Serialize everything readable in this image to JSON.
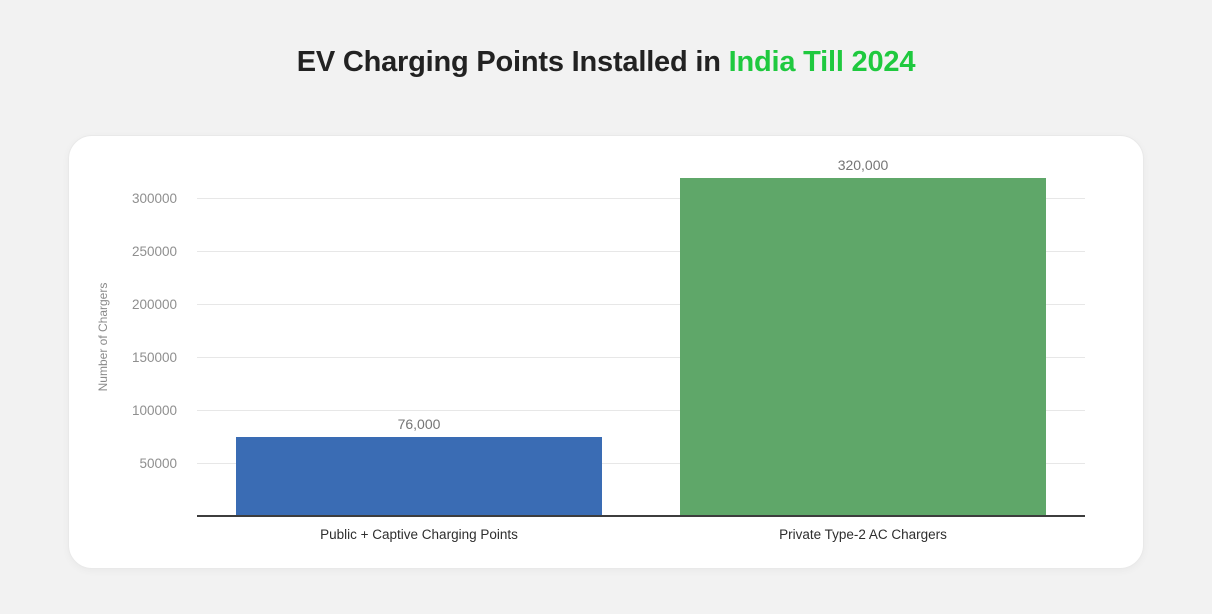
{
  "page": {
    "background": "#f2f2f2",
    "card_background": "#ffffff"
  },
  "header": {
    "title_prefix": "EV Charging Points Installed in ",
    "title_highlight": "India Till 2024",
    "title_color": "#222222",
    "highlight_color": "#1fc93f"
  },
  "chart_data": {
    "type": "bar",
    "title": "EV Charging Points Installed in India Till 2024",
    "categories": [
      "Public + Captive Charging Points",
      "Private Type-2 AC Chargers"
    ],
    "values": [
      76000,
      320000
    ],
    "value_labels": [
      "76,000",
      "320,000"
    ],
    "bar_colors": [
      "#3a6cb4",
      "#5fa769"
    ],
    "xlabel": "",
    "ylabel": "Number of Chargers",
    "ylim": [
      0,
      340000
    ],
    "yticks": [
      50000,
      100000,
      150000,
      200000,
      250000,
      300000
    ],
    "ytick_labels": [
      "50000",
      "100000",
      "150000",
      "200000",
      "250000",
      "300000"
    ],
    "grid": true,
    "legend": false,
    "gridline_color": "#e7e7e7",
    "axis_line_color": "#3d3d3d",
    "tick_label_color": "#8f8f8f",
    "value_label_color": "#757575",
    "category_label_color": "#2e2e2e"
  }
}
